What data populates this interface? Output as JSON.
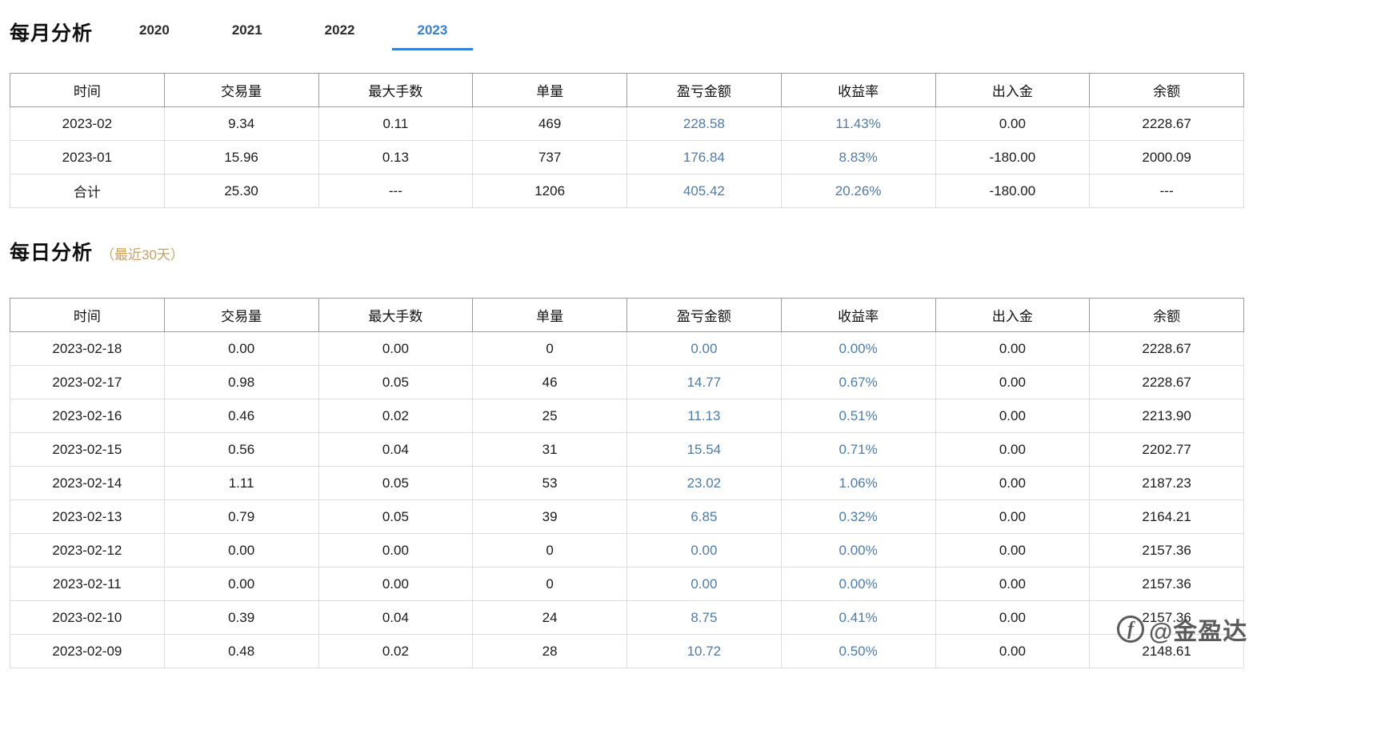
{
  "colors": {
    "accent": "#3580d0",
    "profit": "#4f7bab",
    "subtitle": "#c8a063"
  },
  "monthly": {
    "title": "每月分析",
    "tabs": [
      {
        "label": "2020",
        "active": false
      },
      {
        "label": "2021",
        "active": false
      },
      {
        "label": "2022",
        "active": false
      },
      {
        "label": "2023",
        "active": true
      }
    ],
    "table": {
      "headers": [
        "时间",
        "交易量",
        "最大手数",
        "单量",
        "盈亏金额",
        "收益率",
        "出入金",
        "余额"
      ],
      "rows": [
        [
          "2023-02",
          "9.34",
          "0.11",
          "469",
          "228.58",
          "11.43%",
          "0.00",
          "2228.67"
        ],
        [
          "2023-01",
          "15.96",
          "0.13",
          "737",
          "176.84",
          "8.83%",
          "-180.00",
          "2000.09"
        ],
        [
          "合计",
          "25.30",
          "---",
          "1206",
          "405.42",
          "20.26%",
          "-180.00",
          "---"
        ]
      ]
    }
  },
  "daily": {
    "title": "每日分析",
    "subtitle": "（最近30天）",
    "table": {
      "headers": [
        "时间",
        "交易量",
        "最大手数",
        "单量",
        "盈亏金额",
        "收益率",
        "出入金",
        "余额"
      ],
      "rows": [
        [
          "2023-02-18",
          "0.00",
          "0.00",
          "0",
          "0.00",
          "0.00%",
          "0.00",
          "2228.67"
        ],
        [
          "2023-02-17",
          "0.98",
          "0.05",
          "46",
          "14.77",
          "0.67%",
          "0.00",
          "2228.67"
        ],
        [
          "2023-02-16",
          "0.46",
          "0.02",
          "25",
          "11.13",
          "0.51%",
          "0.00",
          "2213.90"
        ],
        [
          "2023-02-15",
          "0.56",
          "0.04",
          "31",
          "15.54",
          "0.71%",
          "0.00",
          "2202.77"
        ],
        [
          "2023-02-14",
          "1.11",
          "0.05",
          "53",
          "23.02",
          "1.06%",
          "0.00",
          "2187.23"
        ],
        [
          "2023-02-13",
          "0.79",
          "0.05",
          "39",
          "6.85",
          "0.32%",
          "0.00",
          "2164.21"
        ],
        [
          "2023-02-12",
          "0.00",
          "0.00",
          "0",
          "0.00",
          "0.00%",
          "0.00",
          "2157.36"
        ],
        [
          "2023-02-11",
          "0.00",
          "0.00",
          "0",
          "0.00",
          "0.00%",
          "0.00",
          "2157.36"
        ],
        [
          "2023-02-10",
          "0.39",
          "0.04",
          "24",
          "8.75",
          "0.41%",
          "0.00",
          "2157.36"
        ],
        [
          "2023-02-09",
          "0.48",
          "0.02",
          "28",
          "10.72",
          "0.50%",
          "0.00",
          "2148.61"
        ]
      ]
    }
  },
  "watermark": {
    "text": "@金盈达",
    "logo": "f"
  }
}
